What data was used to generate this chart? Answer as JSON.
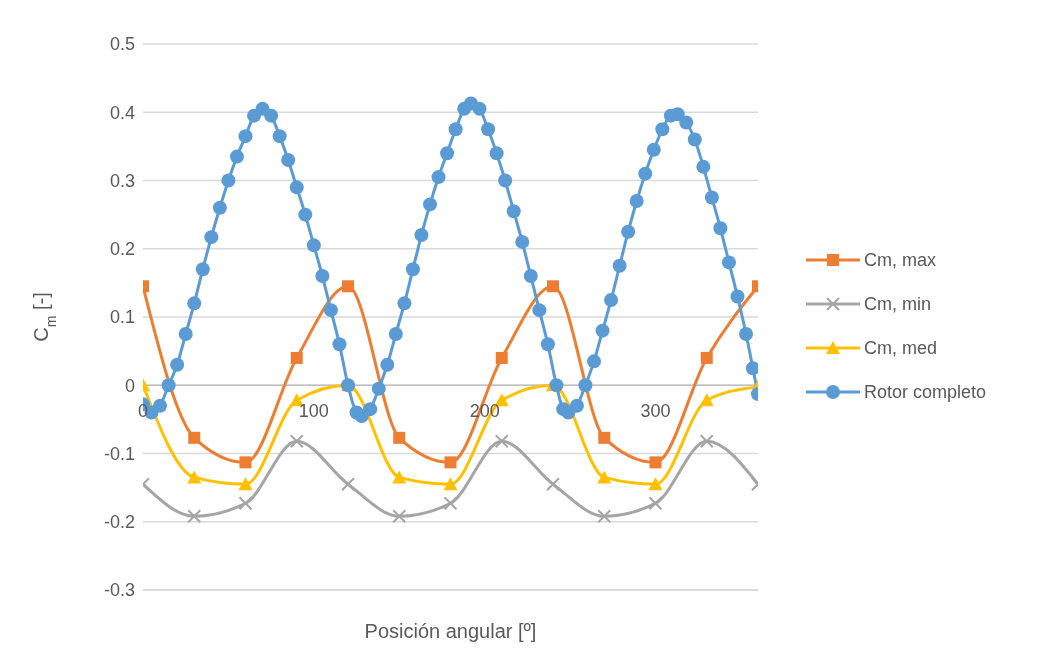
{
  "chart_data": {
    "type": "line",
    "xlabel": "Posición angular [º]",
    "ylabel": "C$_{m}$ [-]",
    "xlim": [
      0,
      360
    ],
    "xticks": [
      0,
      100,
      200,
      300
    ],
    "ylim": [
      -0.3,
      0.5
    ],
    "yticks": [
      -0.3,
      -0.2,
      -0.1,
      0,
      0.1,
      0.2,
      0.3,
      0.4,
      0.5
    ],
    "grid": "y",
    "legend": "right",
    "line_style": "solid",
    "series": [
      {
        "name": "Cm, max",
        "color": "#ed7d31",
        "marker": "square",
        "x": [
          0,
          30,
          60,
          90,
          120,
          150,
          180,
          210,
          240,
          270,
          300,
          330,
          360
        ],
        "values": [
          0.145,
          -0.077,
          -0.113,
          0.04,
          0.145,
          -0.077,
          -0.113,
          0.04,
          0.145,
          -0.077,
          -0.113,
          0.04,
          0.145
        ]
      },
      {
        "name": "Cm, min",
        "color": "#a5a5a5",
        "marker": "cross",
        "x": [
          0,
          30,
          60,
          90,
          120,
          150,
          180,
          210,
          240,
          270,
          300,
          330,
          360
        ],
        "values": [
          -0.145,
          -0.192,
          -0.173,
          -0.082,
          -0.145,
          -0.192,
          -0.173,
          -0.082,
          -0.145,
          -0.192,
          -0.173,
          -0.082,
          -0.145
        ]
      },
      {
        "name": "Cm, med",
        "color": "#ffc000",
        "marker": "triangle",
        "x": [
          0,
          30,
          60,
          90,
          120,
          150,
          180,
          210,
          240,
          270,
          300,
          330,
          360
        ],
        "values": [
          0,
          -0.135,
          -0.145,
          -0.022,
          0,
          -0.135,
          -0.145,
          -0.022,
          0,
          -0.135,
          -0.145,
          -0.022,
          -0.002
        ]
      },
      {
        "name": "Rotor completo",
        "color": "#5b9bd5",
        "marker": "circle",
        "x": [
          0,
          5,
          10,
          15,
          20,
          25,
          30,
          35,
          40,
          45,
          50,
          55,
          60,
          65,
          70,
          75,
          80,
          85,
          90,
          95,
          100,
          105,
          110,
          115,
          120,
          125,
          128,
          133,
          138,
          143,
          148,
          153,
          158,
          163,
          168,
          173,
          178,
          183,
          188,
          192,
          197,
          202,
          207,
          212,
          217,
          222,
          227,
          232,
          237,
          242,
          246,
          249,
          254,
          259,
          264,
          269,
          274,
          279,
          284,
          289,
          294,
          299,
          304,
          309,
          313,
          318,
          323,
          328,
          333,
          338,
          343,
          348,
          353,
          357,
          360
        ],
        "values": [
          -0.028,
          -0.04,
          -0.03,
          0,
          0.03,
          0.075,
          0.12,
          0.17,
          0.217,
          0.26,
          0.3,
          0.335,
          0.365,
          0.395,
          0.405,
          0.395,
          0.365,
          0.33,
          0.29,
          0.25,
          0.205,
          0.16,
          0.11,
          0.06,
          0,
          -0.04,
          -0.045,
          -0.035,
          -0.005,
          0.03,
          0.075,
          0.12,
          0.17,
          0.22,
          0.265,
          0.305,
          0.34,
          0.375,
          0.405,
          0.413,
          0.405,
          0.375,
          0.34,
          0.3,
          0.255,
          0.21,
          0.16,
          0.11,
          0.06,
          0,
          -0.035,
          -0.04,
          -0.03,
          0,
          0.035,
          0.08,
          0.125,
          0.175,
          0.225,
          0.27,
          0.31,
          0.345,
          0.375,
          0.395,
          0.397,
          0.385,
          0.36,
          0.32,
          0.275,
          0.23,
          0.18,
          0.13,
          0.075,
          0.025,
          -0.013
        ]
      }
    ]
  }
}
